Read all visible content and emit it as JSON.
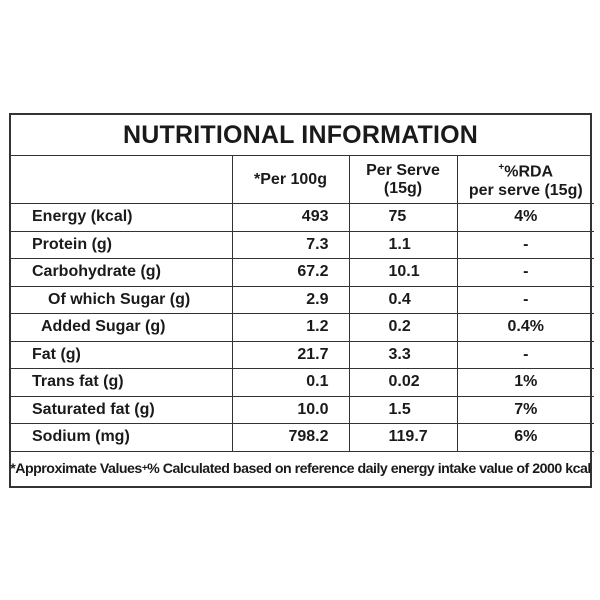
{
  "title": "NUTRITIONAL INFORMATION",
  "columns": {
    "per100g": "*Per 100g",
    "per_serve_line1": "Per Serve",
    "per_serve_line2": "(15g)",
    "rda_mark": "+",
    "rda_line1": "%RDA",
    "rda_line2": "per serve (15g)"
  },
  "rows": [
    {
      "nutrient": "Energy (kcal)",
      "per100g": "493",
      "serve": "75",
      "rda": "4%"
    },
    {
      "nutrient": "Protein (g)",
      "per100g": "7.3",
      "serve": "1.1",
      "rda": "-"
    },
    {
      "nutrient": "Carbohydrate (g)",
      "per100g": "67.2",
      "serve": "10.1",
      "rda": "-"
    },
    {
      "nutrient": "Of which Sugar (g)",
      "per100g": "2.9",
      "serve": "0.4",
      "rda": "-"
    },
    {
      "nutrient": "Added Sugar (g)",
      "per100g": "1.2",
      "serve": "0.2",
      "rda": "0.4%"
    },
    {
      "nutrient": "Fat (g)",
      "per100g": "21.7",
      "serve": "3.3",
      "rda": "-"
    },
    {
      "nutrient": "Trans fat (g)",
      "per100g": "0.1",
      "serve": "0.02",
      "rda": "1%"
    },
    {
      "nutrient": "Saturated fat (g)",
      "per100g": "10.0",
      "serve": "1.5",
      "rda": "7%"
    },
    {
      "nutrient": "Sodium (mg)",
      "per100g": "798.2",
      "serve": "119.7",
      "rda": "6%"
    }
  ],
  "footnote": {
    "part1": "*Approximate Values",
    "mark": "+",
    "part2": "% Calculated based on reference daily energy intake value of 2000 kcal"
  }
}
